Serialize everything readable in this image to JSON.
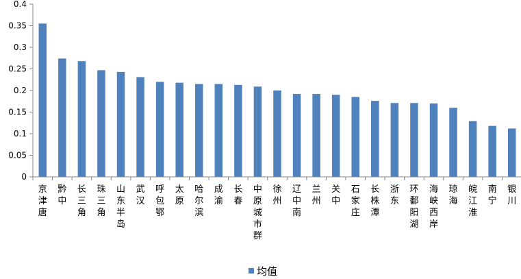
{
  "chart_data": {
    "type": "bar",
    "categories": [
      "京津唐",
      "黔中",
      "长三角",
      "珠三角",
      "山东半岛",
      "武汉",
      "呼包鄂",
      "太原",
      "哈尔滨",
      "成渝",
      "长春",
      "中原城市群",
      "徐州",
      "辽中南",
      "兰州",
      "关中",
      "石家庄",
      "长株潭",
      "浙东",
      "环鄱阳湖",
      "海峡西岸",
      "琼海",
      "皖江淮",
      "南宁",
      "银川"
    ],
    "series": [
      {
        "name": "均值",
        "color": "#4F81BD",
        "values": [
          0.355,
          0.274,
          0.268,
          0.247,
          0.243,
          0.231,
          0.22,
          0.218,
          0.215,
          0.215,
          0.213,
          0.209,
          0.2,
          0.192,
          0.192,
          0.19,
          0.185,
          0.176,
          0.171,
          0.171,
          0.17,
          0.16,
          0.129,
          0.118,
          0.112
        ]
      }
    ],
    "ylim": [
      0,
      0.4
    ],
    "yticks": [
      "0",
      "0.05",
      "0.1",
      "0.15",
      "0.2",
      "0.25",
      "0.3",
      "0.35",
      "0.4"
    ],
    "ytick_values": [
      0,
      0.05,
      0.1,
      0.15,
      0.2,
      0.25,
      0.3,
      0.35,
      0.4
    ],
    "grid": false,
    "legend": "bottom-center",
    "axis_color": "#868686"
  }
}
